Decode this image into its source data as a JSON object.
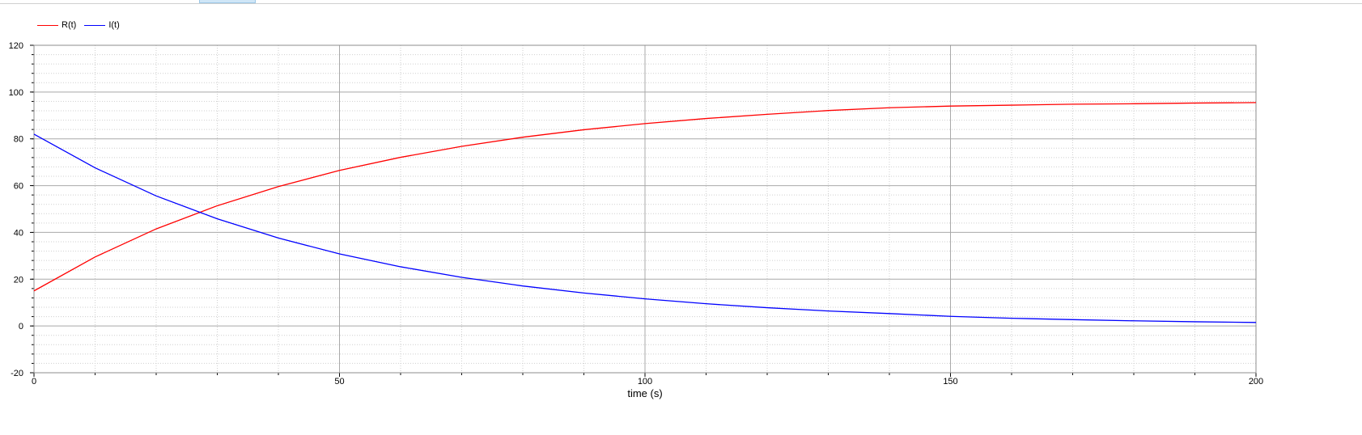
{
  "chart_data": {
    "type": "line",
    "title": "",
    "xlabel": "time (s)",
    "ylabel": "",
    "xlim": [
      0,
      200
    ],
    "ylim": [
      -20,
      120
    ],
    "x_ticks": [
      0,
      50,
      100,
      150,
      200
    ],
    "y_ticks": [
      -20,
      0,
      20,
      40,
      60,
      80,
      100,
      120
    ],
    "grid": true,
    "legend_position": "top-left",
    "x": [
      0,
      10,
      20,
      30,
      40,
      50,
      60,
      70,
      80,
      90,
      100,
      110,
      120,
      130,
      140,
      150,
      160,
      170,
      180,
      190,
      200
    ],
    "series": [
      {
        "name": "R(t)",
        "color": "#ff0000",
        "values": [
          15.0,
          29.5,
          41.5,
          51.4,
          59.6,
          66.5,
          72.1,
          76.8,
          80.7,
          83.9,
          86.5,
          88.7,
          90.5,
          92.1,
          93.3,
          94.0,
          94.4,
          94.8,
          95.0,
          95.3,
          95.5
        ]
      },
      {
        "name": "I(t)",
        "color": "#0000ff",
        "values": [
          82.0,
          67.6,
          55.6,
          45.8,
          37.6,
          30.8,
          25.3,
          20.8,
          17.1,
          14.1,
          11.6,
          9.5,
          7.8,
          6.4,
          5.3,
          4.1,
          3.3,
          2.7,
          2.2,
          1.8,
          1.5
        ]
      }
    ]
  }
}
